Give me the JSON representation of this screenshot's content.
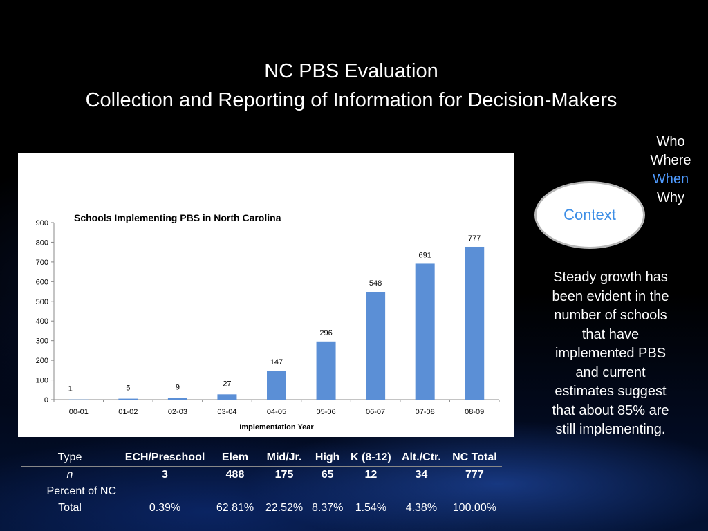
{
  "slide": {
    "title_line1": "NC PBS Evaluation",
    "title_line2": "Collection and Reporting of Information for Decision-Makers"
  },
  "sidebar": {
    "who": "Who",
    "where": "Where",
    "when": "When",
    "why": "Why",
    "context": "Context",
    "note": "Steady growth has been evident in the number of schools that have implemented PBS and current estimates suggest that about 85% are still implementing."
  },
  "chart_data": {
    "type": "bar",
    "title": "Schools Implementing PBS in North Carolina",
    "xlabel": "Implementation Year",
    "ylabel": "",
    "categories": [
      "00-01",
      "01-02",
      "02-03",
      "03-04",
      "04-05",
      "05-06",
      "06-07",
      "07-08",
      "08-09"
    ],
    "values": [
      1,
      5,
      9,
      27,
      147,
      296,
      548,
      691,
      777
    ],
    "data_labels": [
      "1",
      "5",
      "9",
      "27",
      "147",
      "296",
      "548",
      "691",
      "777"
    ],
    "ylim": [
      0,
      900
    ],
    "yticks": [
      "0",
      "100",
      "200",
      "300",
      "400",
      "500",
      "600",
      "700",
      "800",
      "900"
    ],
    "grid": false,
    "legend": "none",
    "bar_color": "#5b8fd6"
  },
  "table": {
    "header": [
      "Type",
      "ECH/Preschool",
      "Elem",
      "Mid/Jr.",
      "High",
      "K (8-12)",
      "Alt./Ctr.",
      "NC Total"
    ],
    "n_row": [
      "n",
      "3",
      "488",
      "175",
      "65",
      "12",
      "34",
      "777"
    ],
    "pct_label_line1": "Percent of NC",
    "pct_row": [
      "Total",
      "0.39%",
      "62.81%",
      "22.52%",
      "8.37%",
      "1.54%",
      "4.38%",
      "100.00%"
    ]
  }
}
